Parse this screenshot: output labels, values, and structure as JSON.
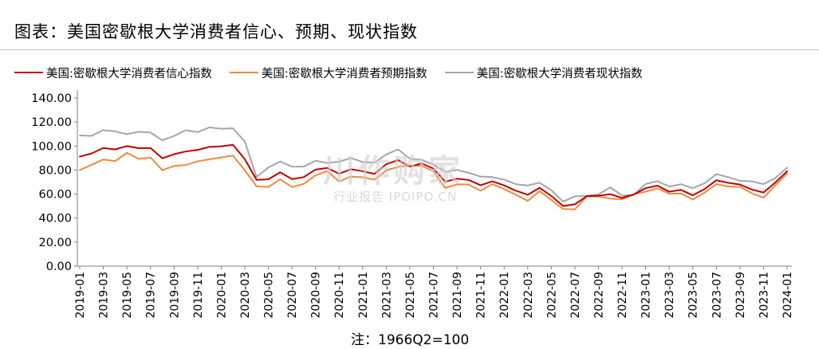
{
  "title": "图表：美国密歇根大学消费者信心、预期、现状指数",
  "note": "注：1966Q2=100",
  "watermark": {
    "main": "川作购家",
    "sub": "行业报告 IPOIPO.CN"
  },
  "chart_data": {
    "type": "line",
    "ylim": [
      0,
      140
    ],
    "yticks": [
      "0.00",
      "20.00",
      "40.00",
      "60.00",
      "80.00",
      "100.00",
      "120.00",
      "140.00"
    ],
    "x": [
      "2019-01",
      "2019-02",
      "2019-03",
      "2019-04",
      "2019-05",
      "2019-06",
      "2019-07",
      "2019-08",
      "2019-09",
      "2019-10",
      "2019-11",
      "2019-12",
      "2020-01",
      "2020-02",
      "2020-03",
      "2020-04",
      "2020-05",
      "2020-06",
      "2020-07",
      "2020-08",
      "2020-09",
      "2020-10",
      "2020-11",
      "2020-12",
      "2021-01",
      "2021-02",
      "2021-03",
      "2021-04",
      "2021-05",
      "2021-06",
      "2021-07",
      "2021-08",
      "2021-09",
      "2021-10",
      "2021-11",
      "2021-12",
      "2022-01",
      "2022-02",
      "2022-03",
      "2022-04",
      "2022-05",
      "2022-06",
      "2022-07",
      "2022-08",
      "2022-09",
      "2022-10",
      "2022-11",
      "2022-12",
      "2023-01",
      "2023-02",
      "2023-03",
      "2023-04",
      "2023-05",
      "2023-06",
      "2023-07",
      "2023-08",
      "2023-09",
      "2023-10",
      "2023-11",
      "2023-12",
      "2024-01"
    ],
    "xticks": [
      "2019-01",
      "2019-03",
      "2019-05",
      "2019-07",
      "2019-09",
      "2019-11",
      "2020-01",
      "2020-03",
      "2020-05",
      "2020-07",
      "2020-09",
      "2020-11",
      "2021-01",
      "2021-03",
      "2021-05",
      "2021-07",
      "2021-09",
      "2021-11",
      "2022-01",
      "2022-03",
      "2022-05",
      "2022-07",
      "2022-09",
      "2022-11",
      "2023-01",
      "2023-03",
      "2023-05",
      "2023-07",
      "2023-09",
      "2023-11",
      "2024-01"
    ],
    "series": [
      {
        "name": "美国:密歇根大学消费者信心指数",
        "color": "#c00000",
        "values": [
          91.2,
          93.8,
          98.4,
          97.2,
          100.0,
          98.2,
          98.4,
          89.8,
          93.2,
          95.5,
          96.8,
          99.3,
          99.8,
          101.0,
          89.1,
          71.8,
          72.3,
          78.1,
          72.5,
          74.1,
          80.4,
          81.8,
          76.9,
          80.7,
          79.0,
          76.8,
          84.9,
          88.3,
          82.9,
          85.5,
          81.2,
          70.3,
          72.8,
          71.7,
          67.4,
          70.6,
          67.2,
          62.8,
          59.4,
          65.2,
          58.4,
          50.0,
          51.5,
          58.2,
          58.6,
          59.9,
          56.8,
          59.7,
          64.9,
          67.0,
          62.0,
          63.5,
          59.0,
          64.2,
          71.5,
          69.4,
          67.9,
          63.8,
          61.3,
          69.7,
          79.0
        ]
      },
      {
        "name": "美国:密歇根大学消费者预期指数",
        "color": "#ee8a3c",
        "values": [
          79.9,
          84.4,
          88.8,
          87.4,
          94.3,
          89.3,
          90.5,
          79.9,
          83.4,
          84.2,
          87.3,
          88.9,
          90.5,
          92.1,
          79.7,
          66.4,
          65.9,
          72.3,
          65.9,
          68.5,
          75.6,
          79.2,
          70.5,
          74.6,
          74.0,
          72.0,
          79.7,
          82.7,
          83.8,
          83.5,
          79.0,
          65.1,
          68.1,
          67.9,
          62.8,
          68.3,
          64.1,
          59.4,
          54.3,
          62.5,
          55.2,
          47.5,
          47.3,
          58.0,
          58.0,
          56.2,
          55.6,
          59.9,
          62.0,
          64.7,
          60.4,
          60.5,
          55.4,
          61.3,
          68.3,
          66.3,
          66.0,
          60.7,
          56.9,
          67.4,
          77.1
        ]
      },
      {
        "name": "美国:密歇根大学消费者现状指数",
        "color": "#a6a6a6",
        "values": [
          108.8,
          108.5,
          113.3,
          112.2,
          109.9,
          111.9,
          111.3,
          104.8,
          108.4,
          113.2,
          111.6,
          115.5,
          114.4,
          114.8,
          103.7,
          74.3,
          82.1,
          87.1,
          82.8,
          82.9,
          87.8,
          85.9,
          87.0,
          90.0,
          86.7,
          86.2,
          93.0,
          97.2,
          89.4,
          88.6,
          84.5,
          78.5,
          80.1,
          77.7,
          74.6,
          74.2,
          72.0,
          68.2,
          67.2,
          69.4,
          63.3,
          53.8,
          58.1,
          58.6,
          59.7,
          65.6,
          58.8,
          59.4,
          68.4,
          70.7,
          66.3,
          68.2,
          64.9,
          69.0,
          76.6,
          74.1,
          71.1,
          70.6,
          68.3,
          73.3,
          81.9
        ]
      }
    ]
  }
}
